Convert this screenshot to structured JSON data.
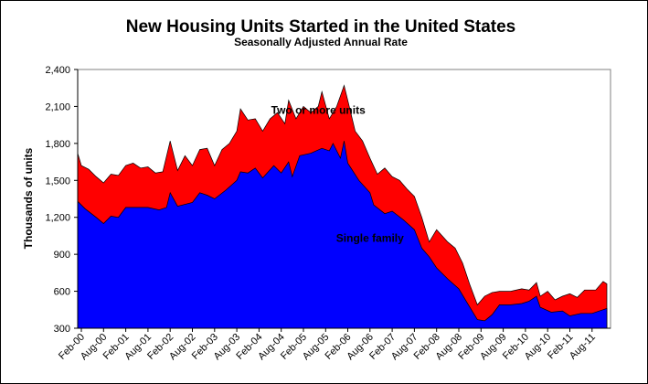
{
  "chart_data": {
    "type": "area",
    "title": "New Housing Units Started in the United States",
    "subtitle": "Seasonally Adjusted Annual Rate",
    "ylabel": "Thousands of units",
    "xlabel": "",
    "ylim": [
      300,
      2400
    ],
    "y_ticks": [
      300,
      600,
      900,
      1200,
      1500,
      1800,
      2100,
      2400
    ],
    "y_tick_labels": [
      "300",
      "600",
      "900",
      "1,200",
      "1,500",
      "1,800",
      "2,100",
      "2,400"
    ],
    "x_start": "2000-01",
    "x_ticks": [
      {
        "month": "2000-02",
        "label": "Feb-00"
      },
      {
        "month": "2000-08",
        "label": "Aug-00"
      },
      {
        "month": "2001-02",
        "label": "Feb-01"
      },
      {
        "month": "2001-08",
        "label": "Aug-01"
      },
      {
        "month": "2002-02",
        "label": "Feb-02"
      },
      {
        "month": "2002-08",
        "label": "Aug-02"
      },
      {
        "month": "2003-02",
        "label": "Feb-03"
      },
      {
        "month": "2003-08",
        "label": "Aug-03"
      },
      {
        "month": "2004-02",
        "label": "Feb-04"
      },
      {
        "month": "2004-08",
        "label": "Aug-04"
      },
      {
        "month": "2005-02",
        "label": "Feb-05"
      },
      {
        "month": "2005-08",
        "label": "Aug-05"
      },
      {
        "month": "2006-02",
        "label": "Feb-06"
      },
      {
        "month": "2006-08",
        "label": "Aug-06"
      },
      {
        "month": "2007-02",
        "label": "Feb-07"
      },
      {
        "month": "2007-08",
        "label": "Aug-07"
      },
      {
        "month": "2008-02",
        "label": "Feb-08"
      },
      {
        "month": "2008-08",
        "label": "Aug-08"
      },
      {
        "month": "2009-02",
        "label": "Feb-09"
      },
      {
        "month": "2009-08",
        "label": "Aug-09"
      },
      {
        "month": "2010-02",
        "label": "Feb-10"
      },
      {
        "month": "2010-08",
        "label": "Aug-10"
      },
      {
        "month": "2011-02",
        "label": "Feb-11"
      },
      {
        "month": "2011-08",
        "label": "Aug-11"
      }
    ],
    "series": [
      {
        "name": "Single family",
        "color": "#0000ff",
        "points": [
          [
            "2000-01",
            1330
          ],
          [
            "2000-03",
            1270
          ],
          [
            "2000-06",
            1200
          ],
          [
            "2000-08",
            1150
          ],
          [
            "2000-10",
            1210
          ],
          [
            "2000-12",
            1200
          ],
          [
            "2001-02",
            1280
          ],
          [
            "2001-05",
            1280
          ],
          [
            "2001-08",
            1280
          ],
          [
            "2001-11",
            1260
          ],
          [
            "2002-01",
            1280
          ],
          [
            "2002-02",
            1400
          ],
          [
            "2002-04",
            1290
          ],
          [
            "2002-08",
            1320
          ],
          [
            "2002-10",
            1400
          ],
          [
            "2002-12",
            1380
          ],
          [
            "2003-02",
            1350
          ],
          [
            "2003-05",
            1420
          ],
          [
            "2003-08",
            1500
          ],
          [
            "2003-09",
            1570
          ],
          [
            "2003-11",
            1560
          ],
          [
            "2004-01",
            1600
          ],
          [
            "2004-03",
            1520
          ],
          [
            "2004-06",
            1620
          ],
          [
            "2004-08",
            1560
          ],
          [
            "2004-10",
            1650
          ],
          [
            "2004-11",
            1530
          ],
          [
            "2005-01",
            1700
          ],
          [
            "2005-04",
            1720
          ],
          [
            "2005-07",
            1760
          ],
          [
            "2005-09",
            1740
          ],
          [
            "2005-10",
            1800
          ],
          [
            "2005-12",
            1680
          ],
          [
            "2006-01",
            1820
          ],
          [
            "2006-02",
            1640
          ],
          [
            "2006-05",
            1500
          ],
          [
            "2006-08",
            1400
          ],
          [
            "2006-09",
            1300
          ],
          [
            "2006-12",
            1230
          ],
          [
            "2007-02",
            1250
          ],
          [
            "2007-05",
            1180
          ],
          [
            "2007-08",
            1100
          ],
          [
            "2007-10",
            950
          ],
          [
            "2007-12",
            880
          ],
          [
            "2008-02",
            790
          ],
          [
            "2008-05",
            700
          ],
          [
            "2008-08",
            620
          ],
          [
            "2008-10",
            520
          ],
          [
            "2008-12",
            420
          ],
          [
            "2009-01",
            370
          ],
          [
            "2009-03",
            360
          ],
          [
            "2009-05",
            410
          ],
          [
            "2009-07",
            490
          ],
          [
            "2009-10",
            490
          ],
          [
            "2010-01",
            500
          ],
          [
            "2010-03",
            520
          ],
          [
            "2010-05",
            560
          ],
          [
            "2010-06",
            470
          ],
          [
            "2010-09",
            430
          ],
          [
            "2010-12",
            440
          ],
          [
            "2011-02",
            400
          ],
          [
            "2011-05",
            420
          ],
          [
            "2011-08",
            420
          ],
          [
            "2011-10",
            440
          ],
          [
            "2011-12",
            460
          ]
        ]
      },
      {
        "name": "Two or more units",
        "color": "#ff0000",
        "points": [
          [
            "2000-01",
            1720
          ],
          [
            "2000-02",
            1620
          ],
          [
            "2000-04",
            1590
          ],
          [
            "2000-06",
            1530
          ],
          [
            "2000-08",
            1480
          ],
          [
            "2000-10",
            1550
          ],
          [
            "2000-12",
            1540
          ],
          [
            "2001-02",
            1620
          ],
          [
            "2001-04",
            1640
          ],
          [
            "2001-06",
            1600
          ],
          [
            "2001-08",
            1610
          ],
          [
            "2001-10",
            1560
          ],
          [
            "2001-12",
            1570
          ],
          [
            "2002-02",
            1820
          ],
          [
            "2002-04",
            1580
          ],
          [
            "2002-06",
            1700
          ],
          [
            "2002-08",
            1620
          ],
          [
            "2002-10",
            1750
          ],
          [
            "2002-12",
            1760
          ],
          [
            "2003-02",
            1620
          ],
          [
            "2003-04",
            1750
          ],
          [
            "2003-06",
            1800
          ],
          [
            "2003-08",
            1900
          ],
          [
            "2003-09",
            2080
          ],
          [
            "2003-11",
            1990
          ],
          [
            "2004-01",
            2000
          ],
          [
            "2004-03",
            1900
          ],
          [
            "2004-05",
            2000
          ],
          [
            "2004-07",
            2050
          ],
          [
            "2004-09",
            1960
          ],
          [
            "2004-10",
            2150
          ],
          [
            "2004-12",
            2000
          ],
          [
            "2005-02",
            2100
          ],
          [
            "2005-04",
            2050
          ],
          [
            "2005-06",
            2100
          ],
          [
            "2005-07",
            2220
          ],
          [
            "2005-09",
            2000
          ],
          [
            "2005-11",
            2100
          ],
          [
            "2006-01",
            2270
          ],
          [
            "2006-02",
            2150
          ],
          [
            "2006-04",
            1900
          ],
          [
            "2006-06",
            1820
          ],
          [
            "2006-08",
            1680
          ],
          [
            "2006-10",
            1550
          ],
          [
            "2006-12",
            1600
          ],
          [
            "2007-02",
            1530
          ],
          [
            "2007-04",
            1500
          ],
          [
            "2007-06",
            1430
          ],
          [
            "2007-08",
            1370
          ],
          [
            "2007-10",
            1200
          ],
          [
            "2007-12",
            1000
          ],
          [
            "2008-02",
            1100
          ],
          [
            "2008-05",
            1000
          ],
          [
            "2008-07",
            950
          ],
          [
            "2008-09",
            830
          ],
          [
            "2008-11",
            650
          ],
          [
            "2009-01",
            490
          ],
          [
            "2009-03",
            560
          ],
          [
            "2009-05",
            590
          ],
          [
            "2009-07",
            600
          ],
          [
            "2009-10",
            600
          ],
          [
            "2010-01",
            620
          ],
          [
            "2010-03",
            610
          ],
          [
            "2010-05",
            670
          ],
          [
            "2010-06",
            560
          ],
          [
            "2010-08",
            600
          ],
          [
            "2010-10",
            530
          ],
          [
            "2010-12",
            560
          ],
          [
            "2011-02",
            580
          ],
          [
            "2011-04",
            550
          ],
          [
            "2011-06",
            610
          ],
          [
            "2011-09",
            610
          ],
          [
            "2011-11",
            680
          ],
          [
            "2011-12",
            660
          ]
        ]
      }
    ],
    "annotations": [
      {
        "text": "Two or more units",
        "month": "2005-06",
        "value": 2040
      },
      {
        "text": "Single family",
        "month": "2006-08",
        "value": 1000
      }
    ],
    "grid": false,
    "legend": "none"
  }
}
